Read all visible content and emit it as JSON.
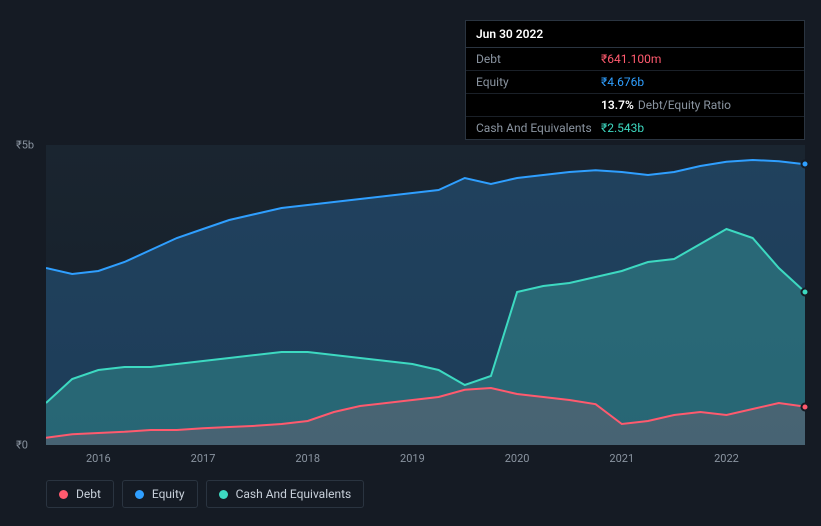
{
  "tooltip": {
    "date": "Jun 30 2022",
    "rows": [
      {
        "label": "Debt",
        "value": "₹641.100m",
        "cls": "debt"
      },
      {
        "label": "Equity",
        "value": "₹4.676b",
        "cls": "equity"
      },
      {
        "label": "",
        "ratio_pct": "13.7%",
        "ratio_label": "Debt/Equity Ratio"
      },
      {
        "label": "Cash And Equivalents",
        "value": "₹2.543b",
        "cls": "cash"
      }
    ]
  },
  "chart": {
    "type": "area",
    "background_color": "#151b24",
    "plot_bg": "#1a2530",
    "grid_color": "#2a3440",
    "ylim": [
      0,
      5
    ],
    "ylabels": [
      {
        "v": 5,
        "text": "₹5b"
      },
      {
        "v": 0,
        "text": "₹0"
      }
    ],
    "xlim": [
      2015.5,
      2022.75
    ],
    "xticks": [
      2016,
      2017,
      2018,
      2019,
      2020,
      2021,
      2022
    ],
    "series": {
      "equity": {
        "label": "Equity",
        "color": "#2f9fff",
        "fill": "rgba(47,120,180,0.35)",
        "line_width": 2,
        "points": [
          [
            2015.5,
            2.95
          ],
          [
            2015.75,
            2.85
          ],
          [
            2016.0,
            2.9
          ],
          [
            2016.25,
            3.05
          ],
          [
            2016.5,
            3.25
          ],
          [
            2016.75,
            3.45
          ],
          [
            2017.0,
            3.6
          ],
          [
            2017.25,
            3.75
          ],
          [
            2017.5,
            3.85
          ],
          [
            2017.75,
            3.95
          ],
          [
            2018.0,
            4.0
          ],
          [
            2018.25,
            4.05
          ],
          [
            2018.5,
            4.1
          ],
          [
            2018.75,
            4.15
          ],
          [
            2019.0,
            4.2
          ],
          [
            2019.25,
            4.25
          ],
          [
            2019.5,
            4.45
          ],
          [
            2019.75,
            4.35
          ],
          [
            2020.0,
            4.45
          ],
          [
            2020.25,
            4.5
          ],
          [
            2020.5,
            4.55
          ],
          [
            2020.75,
            4.58
          ],
          [
            2021.0,
            4.55
          ],
          [
            2021.25,
            4.5
          ],
          [
            2021.5,
            4.55
          ],
          [
            2021.75,
            4.65
          ],
          [
            2022.0,
            4.72
          ],
          [
            2022.25,
            4.75
          ],
          [
            2022.5,
            4.73
          ],
          [
            2022.75,
            4.68
          ]
        ]
      },
      "cash": {
        "label": "Cash And Equivalents",
        "color": "#3dd9c1",
        "fill": "rgba(61,180,170,0.35)",
        "line_width": 2,
        "points": [
          [
            2015.5,
            0.7
          ],
          [
            2015.75,
            1.1
          ],
          [
            2016.0,
            1.25
          ],
          [
            2016.25,
            1.3
          ],
          [
            2016.5,
            1.3
          ],
          [
            2016.75,
            1.35
          ],
          [
            2017.0,
            1.4
          ],
          [
            2017.25,
            1.45
          ],
          [
            2017.5,
            1.5
          ],
          [
            2017.75,
            1.55
          ],
          [
            2018.0,
            1.55
          ],
          [
            2018.25,
            1.5
          ],
          [
            2018.5,
            1.45
          ],
          [
            2018.75,
            1.4
          ],
          [
            2019.0,
            1.35
          ],
          [
            2019.25,
            1.25
          ],
          [
            2019.5,
            1.0
          ],
          [
            2019.75,
            1.15
          ],
          [
            2020.0,
            2.55
          ],
          [
            2020.25,
            2.65
          ],
          [
            2020.5,
            2.7
          ],
          [
            2020.75,
            2.8
          ],
          [
            2021.0,
            2.9
          ],
          [
            2021.25,
            3.05
          ],
          [
            2021.5,
            3.1
          ],
          [
            2021.75,
            3.35
          ],
          [
            2022.0,
            3.6
          ],
          [
            2022.25,
            3.45
          ],
          [
            2022.5,
            2.95
          ],
          [
            2022.75,
            2.55
          ]
        ]
      },
      "debt": {
        "label": "Debt",
        "color": "#ff5a6e",
        "fill": "rgba(255,90,110,0.15)",
        "line_width": 2,
        "points": [
          [
            2015.5,
            0.12
          ],
          [
            2015.75,
            0.18
          ],
          [
            2016.0,
            0.2
          ],
          [
            2016.25,
            0.22
          ],
          [
            2016.5,
            0.25
          ],
          [
            2016.75,
            0.25
          ],
          [
            2017.0,
            0.28
          ],
          [
            2017.25,
            0.3
          ],
          [
            2017.5,
            0.32
          ],
          [
            2017.75,
            0.35
          ],
          [
            2018.0,
            0.4
          ],
          [
            2018.25,
            0.55
          ],
          [
            2018.5,
            0.65
          ],
          [
            2018.75,
            0.7
          ],
          [
            2019.0,
            0.75
          ],
          [
            2019.25,
            0.8
          ],
          [
            2019.5,
            0.92
          ],
          [
            2019.75,
            0.95
          ],
          [
            2020.0,
            0.85
          ],
          [
            2020.25,
            0.8
          ],
          [
            2020.5,
            0.75
          ],
          [
            2020.75,
            0.68
          ],
          [
            2021.0,
            0.35
          ],
          [
            2021.25,
            0.4
          ],
          [
            2021.5,
            0.5
          ],
          [
            2021.75,
            0.55
          ],
          [
            2022.0,
            0.5
          ],
          [
            2022.25,
            0.6
          ],
          [
            2022.5,
            0.7
          ],
          [
            2022.75,
            0.64
          ]
        ]
      }
    },
    "legend_order": [
      "debt",
      "equity",
      "cash"
    ],
    "label_fontsize": 11,
    "label_color": "#8a94a0"
  }
}
